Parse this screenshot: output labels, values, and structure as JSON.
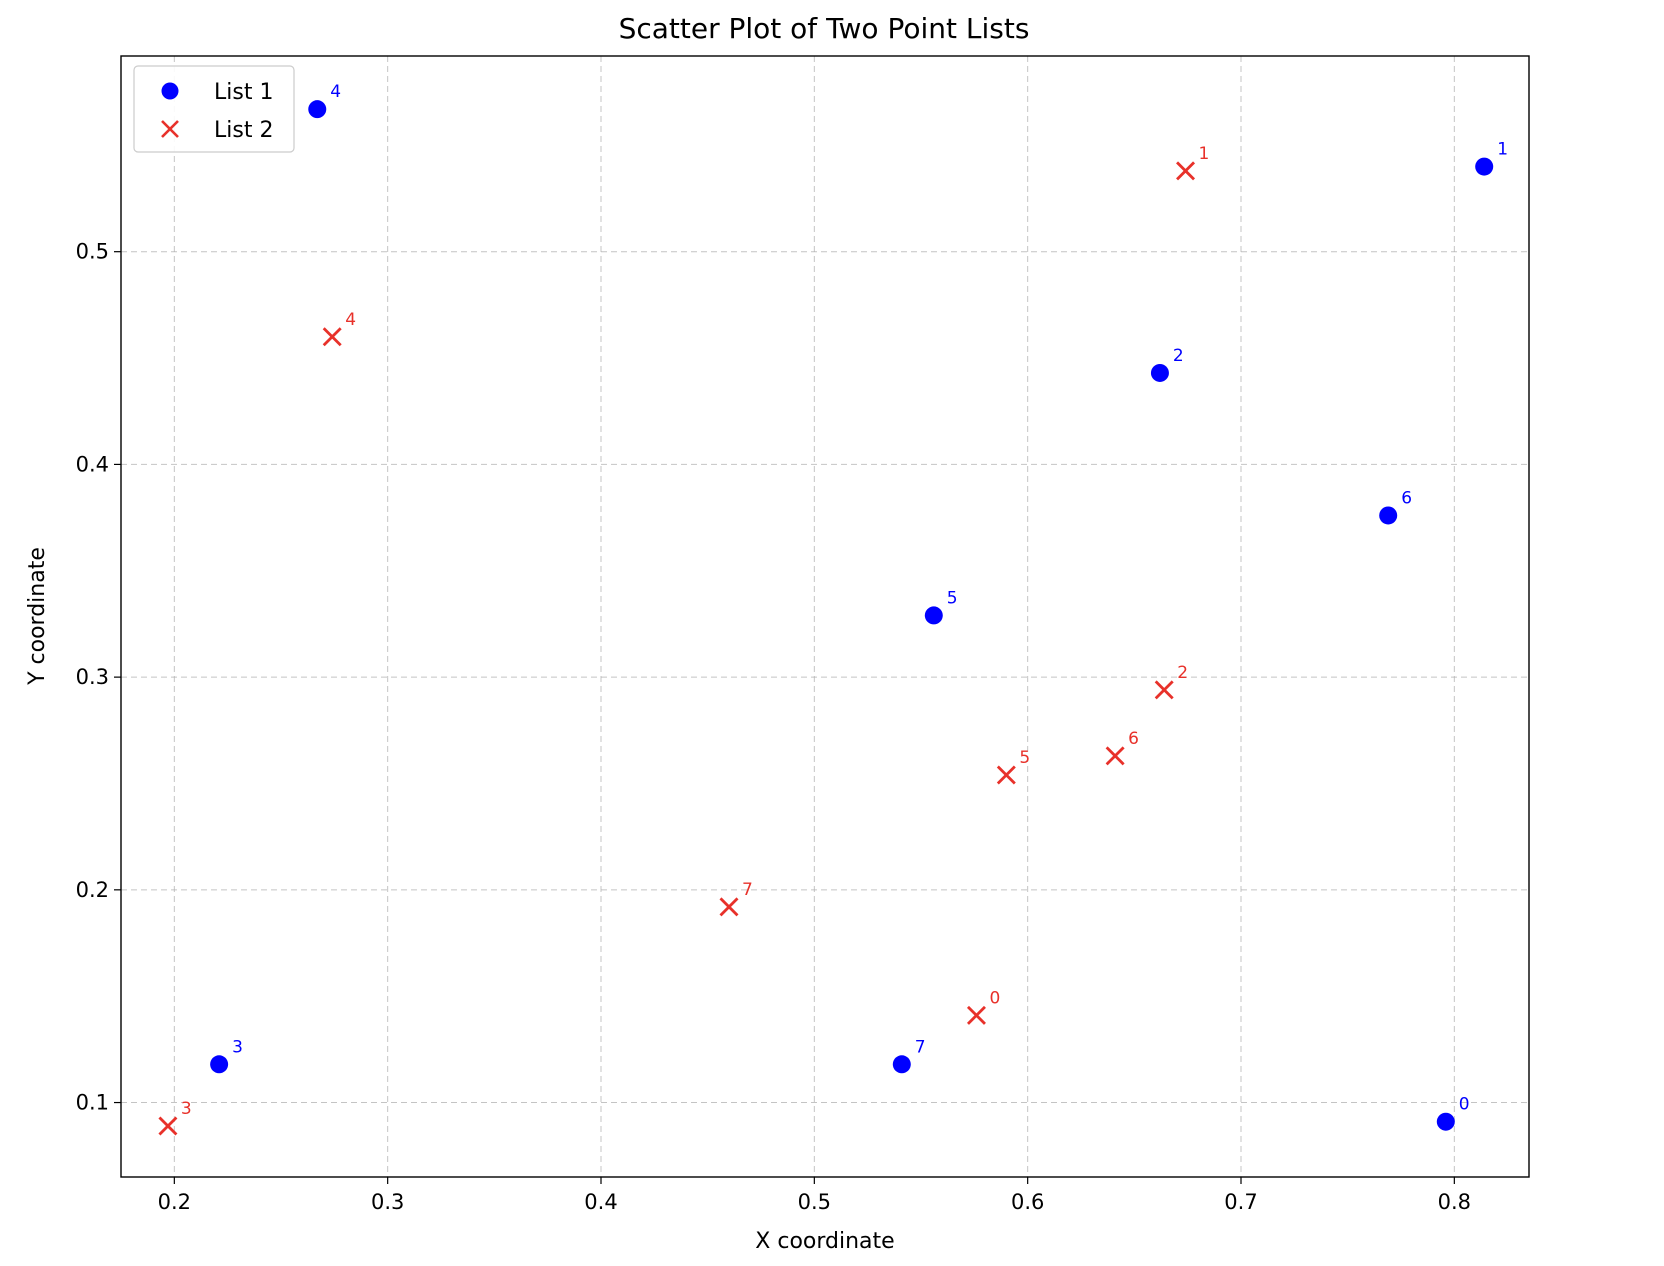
{
  "chart_data": {
    "type": "scatter",
    "title": "Scatter Plot of Two Point Lists",
    "xlabel": "X coordinate",
    "ylabel": "Y coordinate",
    "xlim": [
      0.175,
      0.835
    ],
    "ylim": [
      0.065,
      0.592
    ],
    "xticks": [
      0.2,
      0.3,
      0.4,
      0.5,
      0.6,
      0.7,
      0.8
    ],
    "xtick_labels": [
      "0.2",
      "0.3",
      "0.4",
      "0.5",
      "0.6",
      "0.7",
      "0.8"
    ],
    "yticks": [
      0.1,
      0.2,
      0.3,
      0.4,
      0.5
    ],
    "ytick_labels": [
      "0.1",
      "0.2",
      "0.3",
      "0.4",
      "0.5"
    ],
    "grid": true,
    "legend_position": "top-left",
    "series": [
      {
        "name": "List 1",
        "marker": "circle",
        "color": "#0000ff",
        "points": [
          {
            "x": 0.796,
            "y": 0.091,
            "label": "0"
          },
          {
            "x": 0.814,
            "y": 0.54,
            "label": "1"
          },
          {
            "x": 0.662,
            "y": 0.443,
            "label": "2"
          },
          {
            "x": 0.221,
            "y": 0.118,
            "label": "3"
          },
          {
            "x": 0.267,
            "y": 0.567,
            "label": "4"
          },
          {
            "x": 0.556,
            "y": 0.329,
            "label": "5"
          },
          {
            "x": 0.769,
            "y": 0.376,
            "label": "6"
          },
          {
            "x": 0.541,
            "y": 0.118,
            "label": "7"
          }
        ]
      },
      {
        "name": "List 2",
        "marker": "x",
        "color": "#e8312a",
        "points": [
          {
            "x": 0.576,
            "y": 0.141,
            "label": "0"
          },
          {
            "x": 0.674,
            "y": 0.538,
            "label": "1"
          },
          {
            "x": 0.664,
            "y": 0.294,
            "label": "2"
          },
          {
            "x": 0.197,
            "y": 0.089,
            "label": "3"
          },
          {
            "x": 0.274,
            "y": 0.46,
            "label": "4"
          },
          {
            "x": 0.59,
            "y": 0.254,
            "label": "5"
          },
          {
            "x": 0.641,
            "y": 0.263,
            "label": "6"
          },
          {
            "x": 0.46,
            "y": 0.192,
            "label": "7"
          }
        ]
      }
    ]
  }
}
